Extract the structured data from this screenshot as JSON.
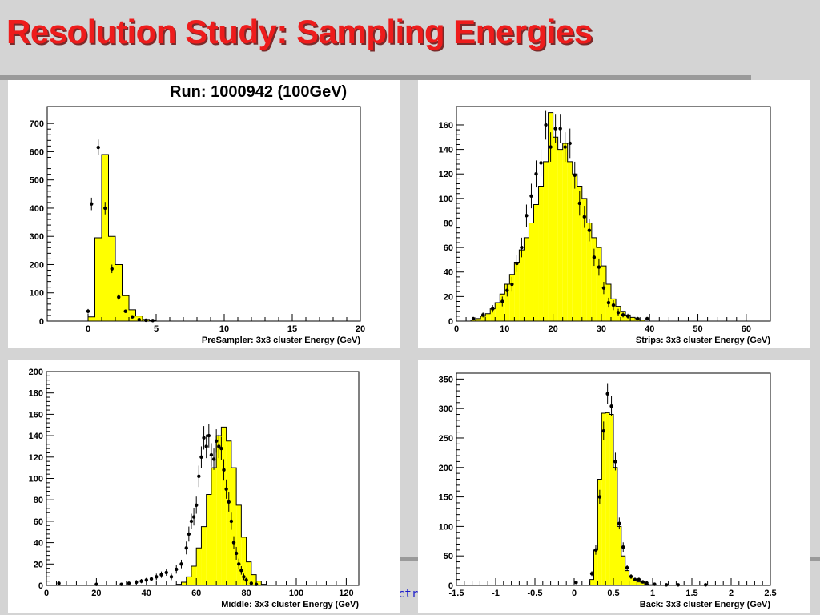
{
  "slide": {
    "title": "Resolution Study: Sampling Energies",
    "run_label": "Run: 1000942 (100GeV)",
    "footer_fragment": "ctr",
    "colors": {
      "title": "#ee1c1c",
      "fill": "#ffff00",
      "background": "#d4d4d4"
    }
  },
  "chart_data": [
    {
      "type": "bar",
      "style": "histogram-with-points",
      "xlabel": "PreSampler: 3x3 cluster Energy (GeV)",
      "xlim": [
        -3,
        20
      ],
      "ylim": [
        0,
        760
      ],
      "xticks": [
        0,
        5,
        10,
        15,
        20
      ],
      "yticks": [
        0,
        100,
        200,
        300,
        400,
        500,
        600,
        700
      ],
      "bins": [
        [
          0,
          0.5,
          15
        ],
        [
          0.5,
          1,
          295
        ],
        [
          1,
          1.5,
          590
        ],
        [
          1.5,
          2,
          300
        ],
        [
          2,
          2.5,
          200
        ],
        [
          2.5,
          3,
          90
        ],
        [
          3,
          3.5,
          40
        ],
        [
          3.5,
          4,
          18
        ],
        [
          4,
          4.5,
          6
        ],
        [
          4.5,
          5,
          2
        ]
      ],
      "points": [
        [
          0,
          35,
          8
        ],
        [
          0.25,
          415,
          22
        ],
        [
          0.75,
          615,
          28
        ],
        [
          1.25,
          400,
          22
        ],
        [
          1.75,
          185,
          15
        ],
        [
          2.25,
          85,
          10
        ],
        [
          2.75,
          35,
          6
        ],
        [
          3.25,
          15,
          4
        ],
        [
          3.75,
          5,
          3
        ],
        [
          4.25,
          3,
          2
        ],
        [
          4.75,
          2,
          1
        ]
      ]
    },
    {
      "type": "bar",
      "style": "histogram-with-points",
      "xlabel": "Strips: 3x3 cluster Energy (GeV)",
      "xlim": [
        0,
        65
      ],
      "ylim": [
        0,
        175
      ],
      "xticks": [
        0,
        10,
        20,
        30,
        40,
        50,
        60
      ],
      "yticks": [
        0,
        20,
        40,
        60,
        80,
        100,
        120,
        140,
        160
      ],
      "bins": [
        [
          3,
          4,
          1
        ],
        [
          4,
          5,
          2
        ],
        [
          5,
          6,
          4
        ],
        [
          6,
          7,
          6
        ],
        [
          7,
          8,
          10
        ],
        [
          8,
          9,
          15
        ],
        [
          9,
          10,
          22
        ],
        [
          10,
          11,
          30
        ],
        [
          11,
          12,
          38
        ],
        [
          12,
          13,
          48
        ],
        [
          13,
          14,
          58
        ],
        [
          14,
          15,
          68
        ],
        [
          15,
          16,
          80
        ],
        [
          16,
          17,
          95
        ],
        [
          17,
          18,
          110
        ],
        [
          18,
          19,
          130
        ],
        [
          19,
          20,
          170
        ],
        [
          20,
          21,
          150
        ],
        [
          21,
          22,
          140
        ],
        [
          22,
          23,
          145
        ],
        [
          23,
          24,
          130
        ],
        [
          24,
          25,
          120
        ],
        [
          25,
          26,
          110
        ],
        [
          26,
          27,
          100
        ],
        [
          27,
          28,
          80
        ],
        [
          28,
          29,
          68
        ],
        [
          29,
          30,
          60
        ],
        [
          30,
          31,
          45
        ],
        [
          31,
          32,
          30
        ],
        [
          32,
          33,
          18
        ],
        [
          33,
          34,
          12
        ],
        [
          34,
          35,
          8
        ],
        [
          35,
          36,
          5
        ],
        [
          36,
          37,
          3
        ],
        [
          37,
          38,
          2
        ],
        [
          38,
          39,
          1
        ]
      ],
      "points": [
        [
          3.5,
          2,
          1
        ],
        [
          5.5,
          5,
          2
        ],
        [
          7.5,
          10,
          3
        ],
        [
          9.5,
          16,
          4
        ],
        [
          10.5,
          25,
          5
        ],
        [
          11.5,
          30,
          6
        ],
        [
          12.5,
          47,
          7
        ],
        [
          13.5,
          60,
          8
        ],
        [
          14.5,
          86,
          9
        ],
        [
          15.5,
          102,
          10
        ],
        [
          16.5,
          120,
          11
        ],
        [
          17.5,
          129,
          11
        ],
        [
          18.5,
          160,
          12
        ],
        [
          19.5,
          142,
          12
        ],
        [
          20.5,
          157,
          12
        ],
        [
          21.5,
          157,
          12
        ],
        [
          22.5,
          142,
          12
        ],
        [
          23.5,
          145,
          12
        ],
        [
          24.5,
          119,
          11
        ],
        [
          25.5,
          96,
          10
        ],
        [
          26.5,
          85,
          9
        ],
        [
          27.5,
          74,
          9
        ],
        [
          28.5,
          52,
          7
        ],
        [
          29.5,
          44,
          7
        ],
        [
          30.5,
          27,
          5
        ],
        [
          31.5,
          15,
          4
        ],
        [
          32.5,
          13,
          4
        ],
        [
          33.5,
          7,
          3
        ],
        [
          34.5,
          5,
          2
        ],
        [
          35.5,
          4,
          2
        ],
        [
          37.5,
          2,
          1
        ],
        [
          39.5,
          2,
          1
        ]
      ]
    },
    {
      "type": "bar",
      "style": "histogram-with-points",
      "xlabel": "Middle: 3x3 cluster Energy (GeV)",
      "xlim": [
        0,
        125
      ],
      "ylim": [
        0,
        200
      ],
      "xticks": [
        0,
        20,
        40,
        60,
        80,
        100,
        120
      ],
      "yticks": [
        0,
        20,
        40,
        60,
        80,
        100,
        120,
        140,
        160,
        180,
        200
      ],
      "bins": [
        [
          52,
          54,
          1
        ],
        [
          54,
          56,
          3
        ],
        [
          56,
          58,
          8
        ],
        [
          58,
          60,
          18
        ],
        [
          60,
          62,
          35
        ],
        [
          62,
          64,
          55
        ],
        [
          64,
          66,
          85
        ],
        [
          66,
          68,
          110
        ],
        [
          68,
          70,
          140
        ],
        [
          70,
          72,
          148
        ],
        [
          72,
          74,
          135
        ],
        [
          74,
          76,
          110
        ],
        [
          76,
          78,
          75
        ],
        [
          78,
          80,
          45
        ],
        [
          80,
          82,
          22
        ],
        [
          82,
          84,
          10
        ],
        [
          84,
          86,
          4
        ],
        [
          86,
          88,
          1
        ]
      ],
      "points": [
        [
          5,
          2,
          1
        ],
        [
          20,
          1,
          1
        ],
        [
          30,
          1,
          1
        ],
        [
          33,
          2,
          1
        ],
        [
          36,
          3,
          2
        ],
        [
          38,
          4,
          2
        ],
        [
          40,
          5,
          2
        ],
        [
          42,
          6,
          2
        ],
        [
          44,
          8,
          3
        ],
        [
          46,
          10,
          3
        ],
        [
          48,
          12,
          3
        ],
        [
          50,
          8,
          3
        ],
        [
          52,
          15,
          4
        ],
        [
          54,
          20,
          4
        ],
        [
          56,
          35,
          6
        ],
        [
          57,
          48,
          7
        ],
        [
          58,
          60,
          7
        ],
        [
          59,
          64,
          8
        ],
        [
          60,
          75,
          8
        ],
        [
          61,
          102,
          10
        ],
        [
          62,
          120,
          10
        ],
        [
          63,
          138,
          11
        ],
        [
          64,
          130,
          11
        ],
        [
          65,
          140,
          11
        ],
        [
          66,
          122,
          11
        ],
        [
          67,
          118,
          10
        ],
        [
          68,
          135,
          11
        ],
        [
          69,
          130,
          11
        ],
        [
          70,
          128,
          11
        ],
        [
          71,
          108,
          10
        ],
        [
          72,
          90,
          9
        ],
        [
          73,
          78,
          9
        ],
        [
          74,
          60,
          8
        ],
        [
          75,
          40,
          6
        ],
        [
          76,
          30,
          6
        ],
        [
          77,
          20,
          5
        ],
        [
          78,
          14,
          4
        ],
        [
          79,
          8,
          3
        ],
        [
          80,
          5,
          2
        ],
        [
          82,
          2,
          1
        ],
        [
          84,
          1,
          1
        ]
      ]
    },
    {
      "type": "bar",
      "style": "histogram-with-points",
      "xlabel": "Back: 3x3 cluster Energy (GeV)",
      "xlim": [
        -1.5,
        2.5
      ],
      "ylim": [
        0,
        360
      ],
      "xticks": [
        -1.5,
        -1,
        -0.5,
        0,
        0.5,
        1,
        1.5,
        2,
        2.5
      ],
      "yticks": [
        0,
        50,
        100,
        150,
        200,
        250,
        300,
        350
      ],
      "bins": [
        [
          0.2,
          0.25,
          10
        ],
        [
          0.25,
          0.3,
          60
        ],
        [
          0.3,
          0.35,
          180
        ],
        [
          0.35,
          0.4,
          292
        ],
        [
          0.4,
          0.45,
          293
        ],
        [
          0.45,
          0.5,
          290
        ],
        [
          0.5,
          0.55,
          200
        ],
        [
          0.55,
          0.6,
          100
        ],
        [
          0.6,
          0.65,
          50
        ],
        [
          0.65,
          0.7,
          25
        ],
        [
          0.7,
          0.75,
          15
        ],
        [
          0.75,
          0.8,
          10
        ],
        [
          0.8,
          0.85,
          6
        ],
        [
          0.85,
          0.9,
          4
        ],
        [
          0.9,
          0.95,
          2
        ],
        [
          0.95,
          1,
          1
        ]
      ],
      "points": [
        [
          0.025,
          5,
          2
        ],
        [
          0.225,
          20,
          4
        ],
        [
          0.275,
          60,
          8
        ],
        [
          0.325,
          150,
          12
        ],
        [
          0.375,
          262,
          16
        ],
        [
          0.425,
          325,
          18
        ],
        [
          0.475,
          304,
          17
        ],
        [
          0.525,
          210,
          15
        ],
        [
          0.575,
          105,
          10
        ],
        [
          0.625,
          65,
          8
        ],
        [
          0.675,
          30,
          5
        ],
        [
          0.725,
          15,
          4
        ],
        [
          0.775,
          10,
          3
        ],
        [
          0.825,
          10,
          3
        ],
        [
          0.875,
          6,
          2
        ],
        [
          0.925,
          4,
          2
        ],
        [
          1.025,
          2,
          1
        ],
        [
          1.175,
          1,
          1
        ],
        [
          1.325,
          1,
          1
        ],
        [
          1.675,
          1,
          1
        ]
      ]
    }
  ]
}
